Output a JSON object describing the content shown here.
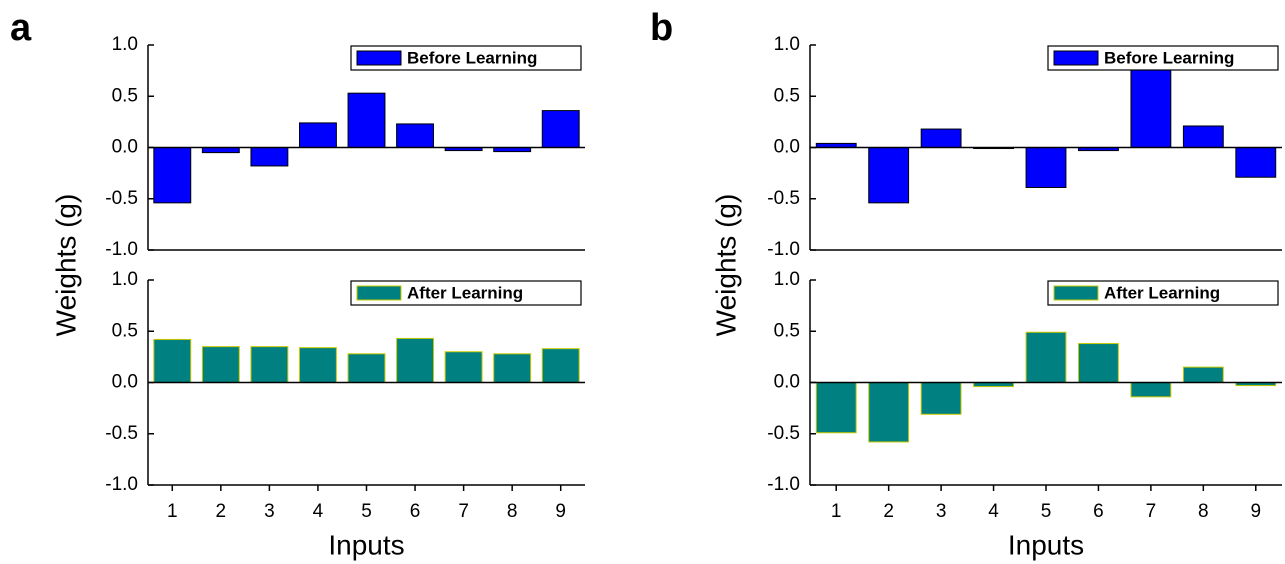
{
  "chart_data": [
    {
      "type": "bar",
      "panel_label": "a",
      "y_label": "Weights (g)",
      "x_label": "Inputs",
      "categories": [
        "1",
        "2",
        "3",
        "4",
        "5",
        "6",
        "7",
        "8",
        "9"
      ],
      "ylim": [
        -1,
        1
      ],
      "yticks": [
        {
          "value": -1,
          "label": "-1.0"
        },
        -0.5,
        {
          "value": 0,
          "label": "0.0"
        },
        0.5,
        {
          "value": 1,
          "label": "1.0"
        }
      ],
      "legend": "upper right",
      "subplots": [
        {
          "series": [
            {
              "name": "Before Learning",
              "color": "#0000ff",
              "edge_color": "#000000",
              "values": [
                -0.54,
                -0.05,
                -0.18,
                0.24,
                0.53,
                0.23,
                -0.03,
                -0.04,
                0.36
              ]
            }
          ]
        },
        {
          "series": [
            {
              "name": "After Learning",
              "color": "#008080",
              "edge_color": "#c8c800",
              "values": [
                0.42,
                0.35,
                0.35,
                0.34,
                0.28,
                0.43,
                0.3,
                0.28,
                0.33
              ]
            }
          ]
        }
      ]
    },
    {
      "type": "bar",
      "panel_label": "b",
      "y_label": "Weights (g)",
      "x_label": "Inputs",
      "categories": [
        "1",
        "2",
        "3",
        "4",
        "5",
        "6",
        "7",
        "8",
        "9"
      ],
      "ylim": [
        -1,
        1
      ],
      "yticks": [
        {
          "value": -1,
          "label": "-1.0"
        },
        -0.5,
        {
          "value": 0,
          "label": "0.0"
        },
        0.5,
        {
          "value": 1,
          "label": "1.0"
        }
      ],
      "legend": "upper right",
      "subplots": [
        {
          "series": [
            {
              "name": "Before Learning",
              "color": "#0000ff",
              "edge_color": "#000000",
              "values": [
                0.04,
                -0.54,
                0.18,
                -0.01,
                -0.39,
                -0.03,
                0.77,
                0.21,
                -0.29
              ]
            }
          ]
        },
        {
          "series": [
            {
              "name": "After Learning",
              "color": "#008080",
              "edge_color": "#c8c800",
              "values": [
                -0.49,
                -0.58,
                -0.31,
                -0.04,
                0.49,
                0.38,
                -0.14,
                0.15,
                -0.03
              ]
            }
          ]
        }
      ]
    }
  ]
}
